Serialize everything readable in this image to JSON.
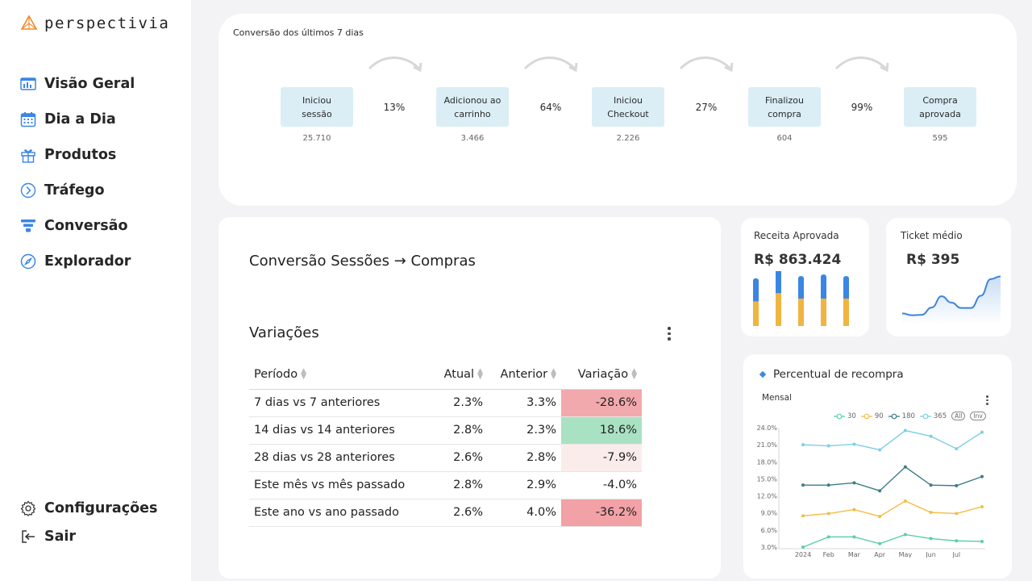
{
  "brand": {
    "name": "perspectivia"
  },
  "nav": {
    "items": [
      {
        "label": "Visão Geral",
        "icon": "dashboard-icon"
      },
      {
        "label": "Dia a Dia",
        "icon": "calendar-icon"
      },
      {
        "label": "Produtos",
        "icon": "gift-icon"
      },
      {
        "label": "Tráfego",
        "icon": "traffic-icon"
      },
      {
        "label": "Conversão",
        "icon": "funnel-icon"
      },
      {
        "label": "Explorador",
        "icon": "compass-icon"
      }
    ],
    "bottom": [
      {
        "label": "Configurações",
        "icon": "gear-icon"
      },
      {
        "label": "Sair",
        "icon": "logout-icon"
      }
    ]
  },
  "funnel": {
    "title": "Conversão dos últimos 7 dias",
    "stages": [
      {
        "line1": "Iniciou",
        "line2": "sessão",
        "count": "25.710"
      },
      {
        "line1": "Adicionou ao",
        "line2": "carrinho",
        "count": "3.466"
      },
      {
        "line1": "Iniciou",
        "line2": "Checkout",
        "count": "2.226"
      },
      {
        "line1": "Finalizou",
        "line2": "compra",
        "count": "604"
      },
      {
        "line1": "Compra",
        "line2": "aprovada",
        "count": "595"
      }
    ],
    "rates": [
      "13%",
      "64%",
      "27%",
      "99%"
    ]
  },
  "conversion": {
    "title": "Conversão Sessões → Compras",
    "variations_title": "Variações",
    "columns": [
      "Período",
      "Atual",
      "Anterior",
      "Variação"
    ],
    "rows": [
      {
        "period": "7 dias vs 7 anteriores",
        "current": "2.3%",
        "previous": "3.3%",
        "change": "-28.6%",
        "bg": "#f2a9ad"
      },
      {
        "period": "14 dias vs 14 anteriores",
        "current": "2.8%",
        "previous": "2.3%",
        "change": "18.6%",
        "bg": "#a9e2c3"
      },
      {
        "period": "28 dias vs 28 anteriores",
        "current": "2.6%",
        "previous": "2.8%",
        "change": "-7.9%",
        "bg": "#fbecec"
      },
      {
        "period": "Este mês vs mês passado",
        "current": "2.8%",
        "previous": "2.9%",
        "change": "-4.0%",
        "bg": "#ffffff"
      },
      {
        "period": "Este ano vs ano passado",
        "current": "2.6%",
        "previous": "4.0%",
        "change": "-36.2%",
        "bg": "#f2a1a6"
      }
    ]
  },
  "kpis": {
    "revenue": {
      "label": "Receita Aprovada",
      "value": "R$ 863.424"
    },
    "ticket": {
      "label": "Ticket médio",
      "value": "R$ 395"
    }
  },
  "repurchase": {
    "title": "Percentual de recompra",
    "subtitle": "Mensal",
    "pill_all": "All",
    "pill_inv": "Inv"
  },
  "colors": {
    "bar_top": "#3b86e4",
    "bar_bottom": "#f0b442",
    "line_ticket": "#3d84d9",
    "s30": "#5ccfa7",
    "s90": "#f3bd48",
    "s180": "#3d7d86",
    "s365": "#7dcfe6"
  },
  "chart_data": [
    {
      "type": "bar",
      "series": [
        {
          "values": [
            0.45,
            0.6,
            0.5,
            0.5,
            0.5
          ]
        },
        {
          "values": [
            0.42,
            0.45,
            0.41,
            0.44,
            0.41
          ]
        }
      ],
      "stacked": true,
      "axes_shown": false
    },
    {
      "type": "area",
      "values": [
        0.1,
        0.06,
        0.07,
        0.23,
        0.48,
        0.34,
        0.22,
        0.22,
        0.49,
        0.86,
        0.92
      ],
      "axes_shown": false
    },
    {
      "type": "line",
      "categories": [
        "2024",
        "Feb",
        "Mar",
        "Apr",
        "May",
        "Jun",
        "Jul",
        ""
      ],
      "series": [
        {
          "name": "30",
          "values": [
            3.0,
            4.8,
            4.8,
            3.6,
            5.2,
            4.5,
            4.1,
            4.0
          ]
        },
        {
          "name": "90",
          "values": [
            8.5,
            8.9,
            9.6,
            8.4,
            11.1,
            9.1,
            8.9,
            10.1
          ]
        },
        {
          "name": "180",
          "values": [
            13.9,
            13.9,
            14.3,
            12.9,
            17.1,
            13.9,
            13.8,
            15.4
          ]
        },
        {
          "name": "365",
          "values": [
            21.0,
            20.8,
            21.1,
            20.1,
            23.5,
            22.5,
            20.3,
            23.2
          ]
        }
      ],
      "ylim": [
        3.0,
        24.0
      ],
      "yticks": [
        "24.0%",
        "21.0%",
        "18.0%",
        "15.0%",
        "12.0%",
        "9.0%",
        "6.0%",
        "3.0%"
      ],
      "grid": false,
      "legend": "top-right"
    }
  ]
}
